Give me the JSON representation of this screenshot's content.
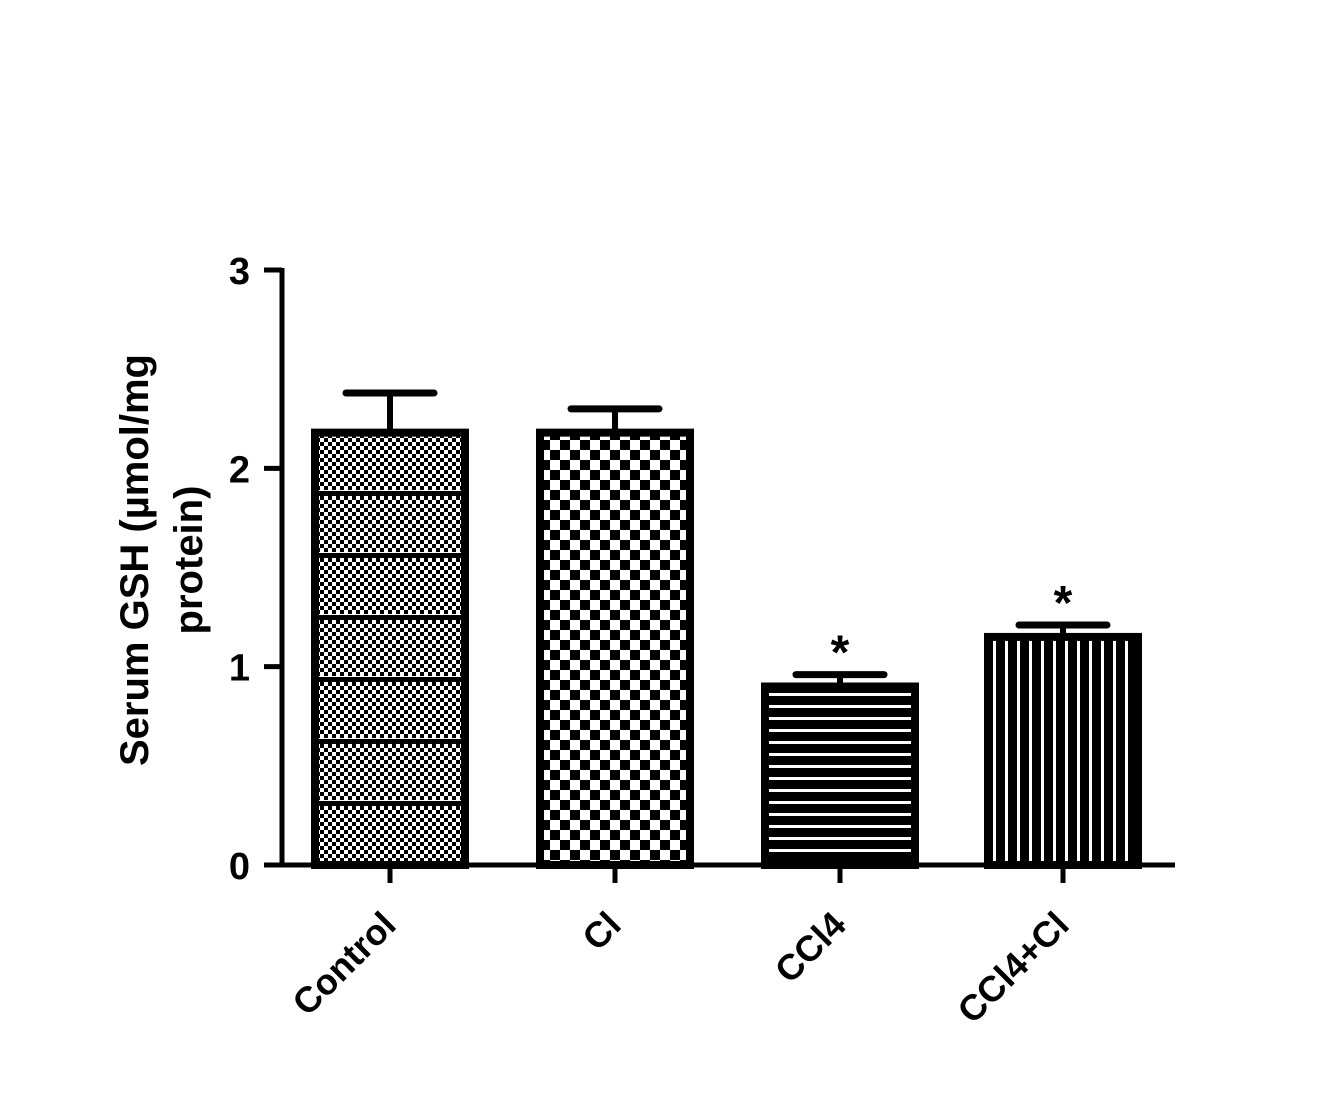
{
  "chart_data": {
    "type": "bar",
    "categories": [
      "Control",
      "Cl",
      "CCl4",
      "CCl4+Cl"
    ],
    "values": [
      2.18,
      2.18,
      0.9,
      1.15
    ],
    "error_upper": [
      0.2,
      0.12,
      0.06,
      0.06
    ],
    "significance": [
      "",
      "",
      "*",
      "*"
    ],
    "patterns": [
      "fine-dots-bands",
      "checkerboard",
      "horizontal-lines",
      "vertical-lines"
    ],
    "title": "",
    "xlabel": "",
    "ylabel": "Serum GSH (µmol/mg protein)",
    "ylabel_lines": [
      "Serum GSH (µmol/mg",
      "protein)"
    ],
    "ylim": [
      0,
      3
    ],
    "yticks": [
      0,
      1,
      2,
      3
    ],
    "ytick_labels": [
      "0",
      "1",
      "2",
      "3"
    ],
    "grid": false,
    "colors": {
      "ink": "#000000",
      "background": "#ffffff"
    }
  }
}
